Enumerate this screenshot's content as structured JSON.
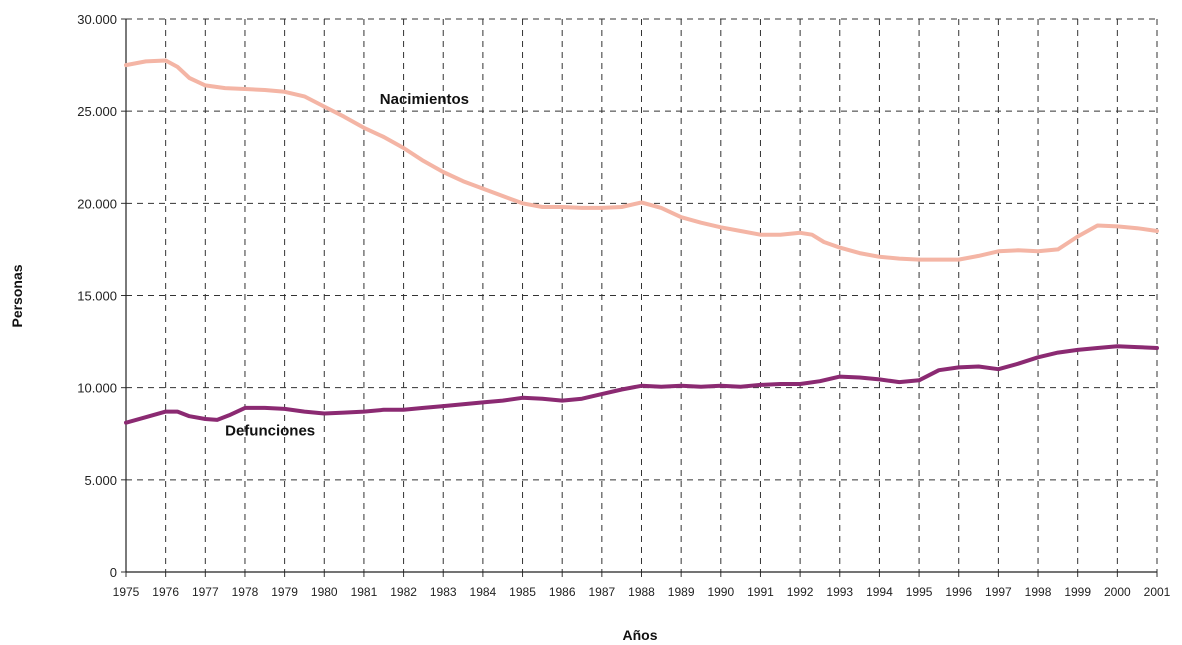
{
  "chart_data": {
    "type": "line",
    "title": "",
    "xlabel": "Años",
    "ylabel": "Personas",
    "x_ticks": [
      "1975",
      "1976",
      "1977",
      "1978",
      "1979",
      "1980",
      "1981",
      "1982",
      "1983",
      "1984",
      "1985",
      "1986",
      "1987",
      "1988",
      "1989",
      "1990",
      "1991",
      "1992",
      "1993",
      "1994",
      "1995",
      "1996",
      "1997",
      "1998",
      "1999",
      "2000",
      "2001"
    ],
    "y_ticks": [
      "0",
      "5.000",
      "10.000",
      "15.000",
      "20.000",
      "25.000",
      "30.000"
    ],
    "ylim": [
      0,
      30000
    ],
    "xlim": [
      1975,
      2001
    ],
    "grid": true,
    "series": [
      {
        "name": "Nacimientos",
        "color": "#f4b5a5",
        "x": [
          1975,
          1975.5,
          1976,
          1976.3,
          1976.6,
          1977,
          1977.5,
          1978,
          1978.5,
          1979,
          1979.5,
          1980,
          1980.5,
          1981,
          1981.5,
          1982,
          1982.5,
          1983,
          1983.5,
          1984,
          1984.5,
          1985,
          1985.5,
          1986,
          1986.5,
          1987,
          1987.5,
          1988,
          1988.5,
          1989,
          1989.5,
          1990,
          1990.5,
          1991,
          1991.5,
          1992,
          1992.3,
          1992.6,
          1993,
          1993.5,
          1994,
          1994.5,
          1995,
          1995.5,
          1996,
          1996.5,
          1997,
          1997.5,
          1998,
          1998.5,
          1999,
          1999.5,
          2000,
          2000.5,
          2001
        ],
        "y": [
          27500,
          27700,
          27750,
          27400,
          26800,
          26400,
          26250,
          26200,
          26150,
          26050,
          25800,
          25250,
          24700,
          24100,
          23600,
          23000,
          22300,
          21700,
          21200,
          20800,
          20400,
          20000,
          19800,
          19800,
          19750,
          19750,
          19800,
          20050,
          19750,
          19250,
          18950,
          18700,
          18500,
          18300,
          18300,
          18400,
          18300,
          17900,
          17600,
          17300,
          17100,
          17000,
          16950,
          16950,
          16950,
          17150,
          17400,
          17450,
          17400,
          17500,
          18200,
          18800,
          18750,
          18650,
          18500
        ]
      },
      {
        "name": "Defunciones",
        "color": "#8b2a72",
        "x": [
          1975,
          1975.5,
          1976,
          1976.3,
          1976.6,
          1977,
          1977.3,
          1977.6,
          1978,
          1978.5,
          1979,
          1979.5,
          1980,
          1980.5,
          1981,
          1981.5,
          1982,
          1982.5,
          1983,
          1983.5,
          1984,
          1984.5,
          1985,
          1985.5,
          1986,
          1986.5,
          1987,
          1987.5,
          1988,
          1988.5,
          1989,
          1989.5,
          1990,
          1990.5,
          1991,
          1991.5,
          1992,
          1992.5,
          1993,
          1993.5,
          1994,
          1994.5,
          1995,
          1995.5,
          1996,
          1996.5,
          1997,
          1997.5,
          1998,
          1998.5,
          1999,
          1999.5,
          2000,
          2000.5,
          2001
        ],
        "y": [
          8100,
          8400,
          8700,
          8700,
          8450,
          8300,
          8250,
          8500,
          8900,
          8900,
          8850,
          8700,
          8600,
          8650,
          8700,
          8800,
          8800,
          8900,
          9000,
          9100,
          9200,
          9300,
          9450,
          9400,
          9300,
          9400,
          9650,
          9900,
          10100,
          10050,
          10100,
          10050,
          10100,
          10050,
          10150,
          10200,
          10200,
          10350,
          10600,
          10550,
          10450,
          10300,
          10400,
          10950,
          11100,
          11150,
          11000,
          11300,
          11650,
          11900,
          12050,
          12150,
          12250,
          12200,
          12150
        ]
      }
    ]
  }
}
